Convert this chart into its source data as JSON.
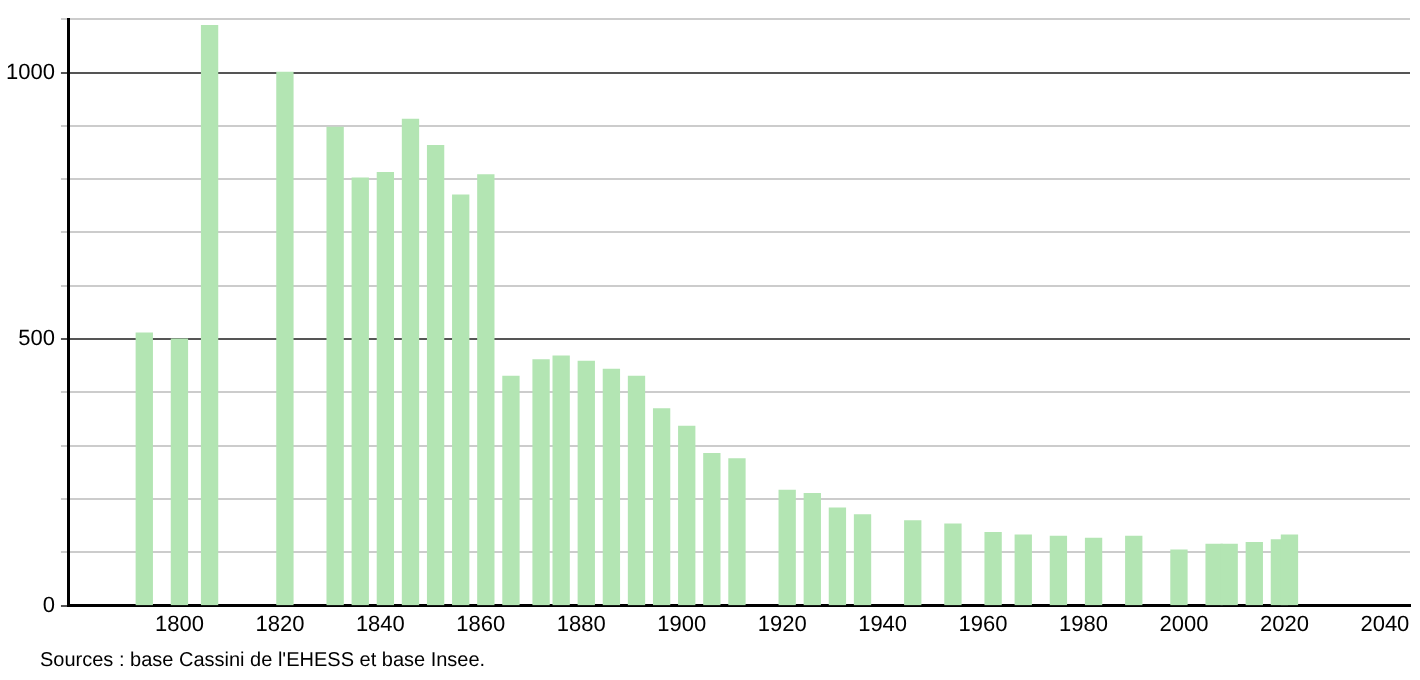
{
  "chart_data": {
    "type": "bar",
    "x": [
      1793,
      1800,
      1806,
      1821,
      1831,
      1836,
      1841,
      1846,
      1851,
      1856,
      1861,
      1866,
      1872,
      1876,
      1881,
      1886,
      1891,
      1896,
      1901,
      1906,
      1911,
      1921,
      1926,
      1931,
      1936,
      1946,
      1954,
      1962,
      1968,
      1975,
      1982,
      1990,
      1999,
      2006,
      2009,
      2014,
      2019,
      2021
    ],
    "values": [
      511,
      500,
      1088,
      1000,
      897,
      802,
      812,
      912,
      863,
      770,
      808,
      430,
      461,
      468,
      458,
      443,
      430,
      369,
      336,
      285,
      275,
      216,
      210,
      183,
      170,
      159,
      153,
      137,
      132,
      130,
      126,
      130,
      104,
      115,
      115,
      118,
      123,
      132
    ],
    "color": "#b3e5b3",
    "xlim": [
      1778,
      2045
    ],
    "xticks": [
      1800,
      1820,
      1840,
      1860,
      1880,
      1900,
      1920,
      1940,
      1960,
      1980,
      2000,
      2020,
      2040
    ],
    "ylim": [
      0,
      1100
    ],
    "yticks": [
      0,
      {
        "value": 100,
        "label": null
      },
      {
        "value": 200,
        "label": null
      },
      {
        "value": 300,
        "label": null
      },
      {
        "value": 400,
        "label": null
      },
      500,
      {
        "value": 600,
        "label": null
      },
      {
        "value": 700,
        "label": null
      },
      {
        "value": 800,
        "label": null
      },
      {
        "value": 900,
        "label": null
      },
      1000,
      {
        "value": 1100,
        "label": null
      }
    ],
    "grid": "y",
    "legend": false,
    "annotations": [
      "Sources : base Cassini de l'EHESS et base Insee."
    ]
  }
}
